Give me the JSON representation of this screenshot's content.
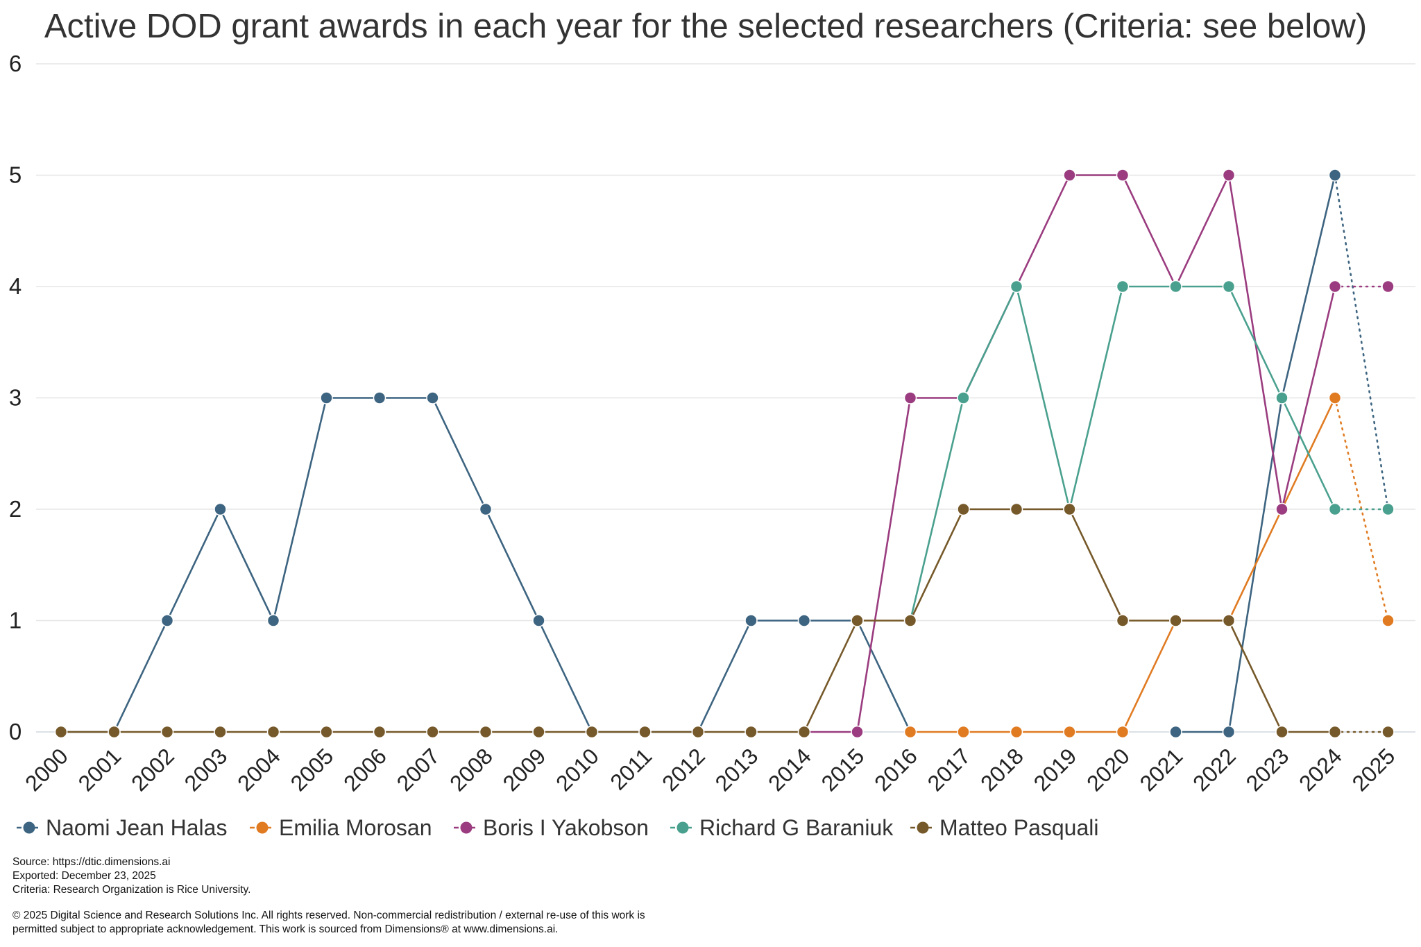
{
  "chart_data": {
    "type": "line",
    "title": "Active DOD grant awards in each year for the selected researchers (Criteria: see below)",
    "xlabel": "",
    "ylabel": "",
    "ylim": [
      0,
      6
    ],
    "yticks": [
      "0",
      "1",
      "2",
      "3",
      "4",
      "5",
      "6"
    ],
    "x": [
      "2000",
      "2001",
      "2002",
      "2003",
      "2004",
      "2005",
      "2006",
      "2007",
      "2008",
      "2009",
      "2010",
      "2011",
      "2012",
      "2013",
      "2014",
      "2015",
      "2016",
      "2017",
      "2018",
      "2019",
      "2020",
      "2021",
      "2022",
      "2023",
      "2024",
      "2025"
    ],
    "grid": true,
    "legend_position": "bottom-left",
    "series": [
      {
        "name": "Naomi Jean Halas",
        "color": "#3d6480",
        "values": [
          0,
          0,
          1,
          2,
          1,
          3,
          3,
          3,
          2,
          1,
          0,
          0,
          0,
          1,
          1,
          1,
          0,
          null,
          null,
          null,
          null,
          0,
          0,
          3,
          5,
          2
        ],
        "dotted_last": true,
        "hide_points": [
          16
        ]
      },
      {
        "name": "Emilia Morosan",
        "color": "#e07b22",
        "values": [
          null,
          null,
          null,
          null,
          null,
          null,
          null,
          null,
          null,
          null,
          null,
          null,
          null,
          null,
          null,
          null,
          0,
          0,
          0,
          0,
          0,
          1,
          1,
          2,
          3,
          1
        ],
        "dotted_last": true,
        "hide_points": [
          23
        ]
      },
      {
        "name": "Boris I Yakobson",
        "color": "#9a3c7f",
        "values": [
          null,
          null,
          null,
          null,
          null,
          null,
          null,
          null,
          null,
          null,
          null,
          null,
          null,
          null,
          0,
          0,
          3,
          3,
          4,
          5,
          5,
          4,
          5,
          2,
          4,
          4
        ],
        "dotted_last": true,
        "hide_points": [
          14,
          18,
          21
        ]
      },
      {
        "name": "Richard G Baraniuk",
        "color": "#4aa08e",
        "values": [
          null,
          null,
          null,
          null,
          null,
          null,
          null,
          null,
          null,
          null,
          null,
          null,
          null,
          null,
          null,
          null,
          1,
          3,
          4,
          2,
          4,
          4,
          4,
          3,
          2,
          2
        ],
        "dotted_last": true,
        "hide_points": [
          16
        ]
      },
      {
        "name": "Matteo Pasquali",
        "color": "#76592a",
        "values": [
          0,
          0,
          0,
          0,
          0,
          0,
          0,
          0,
          0,
          0,
          0,
          0,
          0,
          0,
          0,
          1,
          1,
          2,
          2,
          2,
          1,
          1,
          1,
          0,
          0,
          0
        ],
        "dotted_last": true,
        "hide_points": []
      }
    ]
  },
  "footer": {
    "source": "Source: https://dtic.dimensions.ai",
    "exported": "Exported: December 23, 2025",
    "criteria": "Criteria: Research Organization is Rice University.",
    "copyright_line1": "© 2025 Digital Science and Research Solutions Inc. All rights reserved. Non-commercial redistribution / external re-use of this work is",
    "copyright_line2": "permitted subject to appropriate acknowledgement. This work is sourced from Dimensions® at www.dimensions.ai."
  }
}
